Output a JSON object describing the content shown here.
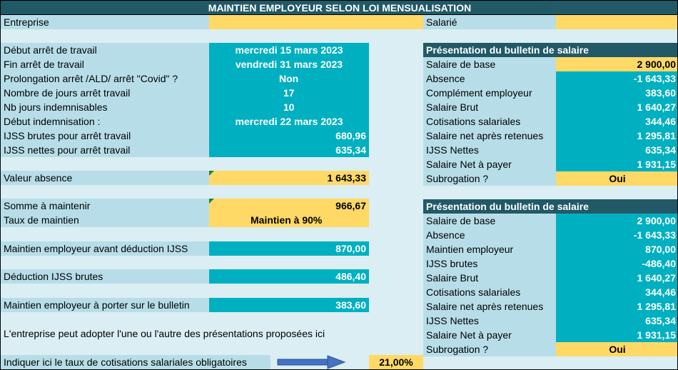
{
  "title": "MAINTIEN EMPLOYEUR SELON LOI MENSUALISATION",
  "top": {
    "entreprise_label": "Entreprise",
    "salarie_label": "Salarié"
  },
  "left": {
    "debut_arret": {
      "label": "Début arrêt de travail",
      "value": "mercredi 15 mars 2023"
    },
    "fin_arret": {
      "label": "Fin arrêt de travail",
      "value": "vendredi 31 mars 2023"
    },
    "prolongation": {
      "label": "Prolongation arrêt /ALD/ arrêt \"Covid\" ?",
      "value": "Non"
    },
    "nb_jours_arret": {
      "label": "Nombre de jours arrêt travail",
      "value": "17"
    },
    "nb_jours_indemn": {
      "label": "Nb jours indemnisables",
      "value": "10"
    },
    "debut_indemn": {
      "label": "Début indemnisation :",
      "value": "mercredi 22 mars 2023"
    },
    "ijss_brutes": {
      "label": "IJSS brutes pour arrêt travail",
      "value": "680,96"
    },
    "ijss_nettes": {
      "label": "IJSS nettes pour arrêt travail",
      "value": "635,34"
    },
    "valeur_absence": {
      "label": "Valeur absence",
      "value": "1 643,33"
    },
    "somme_maintenir": {
      "label": "Somme à maintenir",
      "value": "966,67"
    },
    "taux_maintien": {
      "label": "Taux de maintien",
      "value": "Maintien à 90%"
    },
    "maintien_avant": {
      "label": "Maintien employeur avant déduction IJSS",
      "value": "870,00"
    },
    "deduction_ijss": {
      "label": "Déduction IJSS brutes",
      "value": "486,40"
    },
    "maintien_bulletin": {
      "label": "Maintien employeur à porter sur le bulletin",
      "value": "383,60"
    },
    "note": "L'entreprise peut adopter l'une ou l'autre des présentations proposées ici",
    "taux_cotis": {
      "label": "Indiquer ici le taux de cotisations salariales obligatoires",
      "value": "21,00%"
    }
  },
  "bulletin1": {
    "header": "Présentation du bulletin de salaire",
    "rows": [
      {
        "label": "Salaire de base",
        "value": "2 900,00"
      },
      {
        "label": "Absence",
        "value": "-1 643,33"
      },
      {
        "label": "Complément employeur",
        "value": "383,60"
      },
      {
        "label": "Salaire Brut",
        "value": "1 640,27"
      },
      {
        "label": "Cotisations salariales",
        "value": "344,46"
      },
      {
        "label": "Salaire net après retenues",
        "value": "1 295,81"
      },
      {
        "label": "IJSS Nettes",
        "value": "635,34"
      },
      {
        "label": "Salaire Net à payer",
        "value": "1 931,15"
      },
      {
        "label": "Subrogation ?",
        "value": "Oui"
      }
    ]
  },
  "bulletin2": {
    "header": "Présentation du bulletin de salaire",
    "rows": [
      {
        "label": "Salaire de base",
        "value": "2 900,00"
      },
      {
        "label": "Absence",
        "value": "-1 643,33"
      },
      {
        "label": "Maintien employeur",
        "value": "870,00"
      },
      {
        "label": "IJSS brutes",
        "value": "-486,40"
      },
      {
        "label": "Salaire Brut",
        "value": "1 640,27"
      },
      {
        "label": "Cotisations salariales",
        "value": "344,46"
      },
      {
        "label": "Salaire net après retenues",
        "value": "1 295,81"
      },
      {
        "label": "IJSS Nettes",
        "value": "635,34"
      },
      {
        "label": "Salaire Net à payer",
        "value": "1 931,15"
      },
      {
        "label": "Subrogation ?",
        "value": "Oui"
      }
    ]
  },
  "colors": {
    "title_bg": "#215967",
    "label_bg": "#b7dee8",
    "value_teal": "#00b0c0",
    "input_yellow": "#ffd966",
    "sheet_bg": "#daeef3",
    "arrow": "#4472c4"
  }
}
